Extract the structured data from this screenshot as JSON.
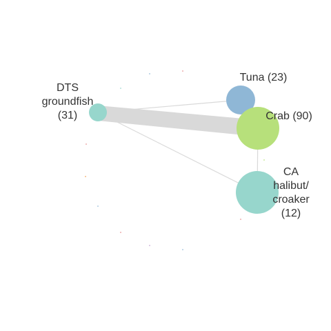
{
  "nodes": [
    {
      "id": "dts",
      "lines": [
        "DTS",
        "groundfish",
        "(31)"
      ],
      "color": "#97d6cc",
      "size_rel": 31
    },
    {
      "id": "tuna",
      "lines": [
        "Tuna (23)"
      ],
      "color": "#8fb7d6",
      "size_rel": 23
    },
    {
      "id": "crab",
      "lines": [
        "Crab (90)"
      ],
      "color": "#b7e07b",
      "size_rel": 90
    },
    {
      "id": "halibut",
      "lines": [
        "CA",
        "halibut/",
        "croaker",
        "(12)"
      ],
      "color": "#97d6cc",
      "size_rel": 12
    }
  ],
  "edges": [
    {
      "from": "dts",
      "to": "crab",
      "weight": "heavy",
      "color": "#d9d9d9"
    },
    {
      "from": "dts",
      "to": "tuna",
      "weight": "light",
      "color": "#d9d9d9"
    },
    {
      "from": "dts",
      "to": "halibut",
      "weight": "light",
      "color": "#d9d9d9"
    },
    {
      "from": "crab",
      "to": "halibut",
      "weight": "light",
      "color": "#d9d9d9"
    }
  ],
  "minor_points": [
    {
      "id": "m1",
      "color": "#8fb7d6"
    },
    {
      "id": "m2",
      "color": "#e58b8b"
    },
    {
      "id": "m3",
      "color": "#97d6cc"
    },
    {
      "id": "m4",
      "color": "#e58b8b"
    },
    {
      "id": "m5",
      "color": "#f0a050"
    },
    {
      "id": "m6",
      "color": "#8fb7d6"
    },
    {
      "id": "m7",
      "color": "#b7e07b"
    },
    {
      "id": "m8",
      "color": "#e58b8b"
    },
    {
      "id": "m9",
      "color": "#c0a0d0"
    },
    {
      "id": "m10",
      "color": "#8fb7d6"
    },
    {
      "id": "m11",
      "color": "#e58b8b"
    }
  ]
}
